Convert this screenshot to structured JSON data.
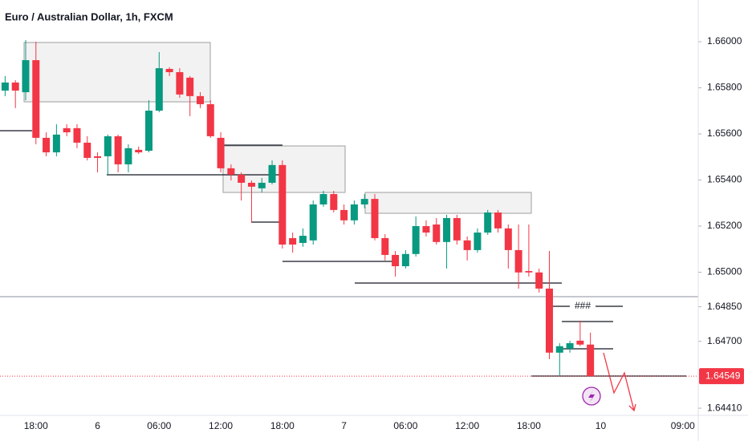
{
  "chart_data": {
    "type": "candlestick",
    "title": "Euro / Australian Dollar, 1h, FXCM",
    "categories": [
      null,
      null,
      null,
      "18:00",
      null,
      null,
      null,
      null,
      null,
      "6",
      null,
      null,
      null,
      null,
      null,
      "06:00",
      null,
      null,
      null,
      null,
      null,
      "12:00",
      null,
      null,
      null,
      null,
      null,
      "18:00",
      null,
      null,
      null,
      null,
      null,
      "7",
      null,
      null,
      null,
      null,
      null,
      "06:00",
      null,
      null,
      null,
      null,
      null,
      "12:00",
      null,
      null,
      null,
      null,
      null,
      "18:00",
      null,
      null,
      null,
      null,
      null,
      null,
      "10",
      null,
      null,
      null,
      null,
      null,
      null,
      null,
      "09:00",
      null
    ],
    "open": [
      1.65788,
      1.65823,
      1.65781,
      1.6592,
      1.65583,
      1.6552,
      1.65625,
      1.65625,
      1.65562,
      1.65503,
      1.65503,
      1.6559,
      1.65468,
      1.65531,
      1.65527,
      1.65701,
      1.65882,
      1.65868,
      1.65844,
      1.65764,
      1.65729,
      1.65583,
      1.65451,
      1.65423,
      1.65388,
      1.65364,
      1.65388,
      1.65465,
      1.65148,
      1.65127,
      1.65138,
      1.65294,
      1.65339,
      1.6527,
      1.65225,
      1.65294,
      1.65318,
      1.65148,
      1.65075,
      1.65026,
      1.65079,
      1.652,
      1.65207,
      1.65131,
      1.65235,
      1.65138,
      1.65096,
      1.65172,
      1.65259,
      1.6519,
      1.65096,
      1.65005,
      1.64999,
      1.64929,
      1.64651,
      1.64668,
      1.64703,
      1.64686,
      null,
      null,
      null,
      null,
      null,
      null,
      null,
      null,
      null,
      null
    ],
    "high": [
      1.65851,
      1.65833,
      1.66007,
      1.66,
      1.65607,
      1.65642,
      1.65642,
      1.65642,
      1.6559,
      1.6552,
      1.65597,
      1.65597,
      1.65555,
      1.65545,
      1.65746,
      1.65955,
      1.65889,
      1.65885,
      1.65851,
      1.65781,
      1.65746,
      1.65607,
      1.65468,
      1.65433,
      1.65398,
      1.65409,
      1.65485,
      1.65485,
      1.65172,
      1.6519,
      1.65311,
      1.65353,
      1.65353,
      1.65294,
      1.65311,
      1.65339,
      1.65339,
      1.65165,
      1.65092,
      1.65096,
      1.65242,
      1.65225,
      1.65235,
      1.65249,
      1.65249,
      1.65155,
      1.6519,
      1.6527,
      1.6527,
      1.65207,
      1.65207,
      1.65207,
      1.65016,
      1.65092,
      1.64692,
      1.64703,
      1.6479,
      1.64738,
      null,
      null,
      null,
      null,
      null,
      null,
      null,
      null,
      null,
      null
    ],
    "low": [
      1.65764,
      1.65712,
      1.65746,
      1.65555,
      1.65503,
      1.65503,
      1.6559,
      1.65538,
      1.65485,
      1.65433,
      1.65423,
      1.65433,
      1.65433,
      1.65513,
      1.6552,
      1.65694,
      1.65851,
      1.65757,
      1.65677,
      1.65712,
      1.65583,
      1.65433,
      1.65398,
      1.65311,
      1.65214,
      1.65346,
      1.65381,
      1.65103,
      1.65085,
      1.6511,
      1.6512,
      1.65284,
      1.65259,
      1.65207,
      1.65207,
      1.65277,
      1.65138,
      1.65051,
      1.64981,
      1.65016,
      1.65068,
      1.65155,
      1.6512,
      1.65016,
      1.6512,
      1.65051,
      1.65085,
      1.65162,
      1.65172,
      1.65016,
      1.64929,
      1.64981,
      1.64912,
      1.64623,
      1.64549,
      1.64651,
      1.64679,
      1.64549,
      null,
      null,
      null,
      null,
      null,
      null,
      null,
      null,
      null,
      null
    ],
    "close": [
      1.65823,
      1.65788,
      1.6592,
      1.65583,
      1.6552,
      1.65597,
      1.65607,
      1.65562,
      1.65496,
      1.65496,
      1.6559,
      1.65468,
      1.65538,
      1.6552,
      1.65701,
      1.65885,
      1.65868,
      1.65771,
      1.65764,
      1.65729,
      1.6559,
      1.65451,
      1.65423,
      1.65388,
      1.65371,
      1.65388,
      1.65465,
      1.6512,
      1.6512,
      1.65158,
      1.65294,
      1.65339,
      1.6527,
      1.65225,
      1.65294,
      1.65318,
      1.65148,
      1.65075,
      1.65026,
      1.65079,
      1.652,
      1.65172,
      1.65131,
      1.65235,
      1.65138,
      1.65096,
      1.65172,
      1.65259,
      1.6519,
      1.65096,
      1.64999,
      1.64999,
      1.64929,
      1.64651,
      1.64679,
      1.64692,
      1.64686,
      1.64549,
      null,
      null,
      null,
      null,
      null,
      null,
      null,
      null,
      null,
      null
    ],
    "up_color": "#089981",
    "down_color": "#f23645",
    "ylim": [
      1.64379,
      1.66181
    ],
    "yticks": [
      {
        "value": 1.66,
        "label": "1.66000"
      },
      {
        "value": 1.658,
        "label": "1.65800"
      },
      {
        "value": 1.656,
        "label": "1.65600"
      },
      {
        "value": 1.654,
        "label": "1.65400"
      },
      {
        "value": 1.652,
        "label": "1.65200"
      },
      {
        "value": 1.65,
        "label": "1.65000"
      },
      {
        "value": 1.6485,
        "label": "1.64850"
      },
      {
        "value": 1.647,
        "label": "1.64700"
      },
      {
        "value": 1.6441,
        "label": "1.64410"
      }
    ],
    "grid": false,
    "last_price": 1.64549,
    "annotation": "###"
  }
}
